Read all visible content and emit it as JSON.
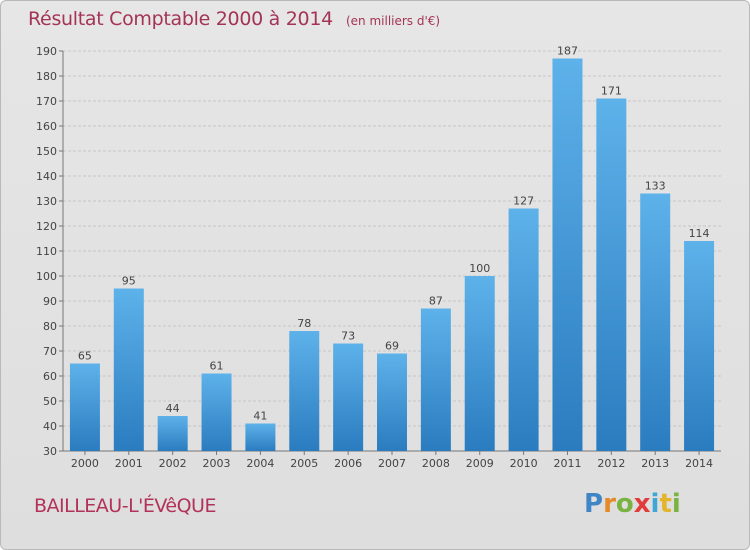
{
  "title": "Résultat Comptable 2000 à 2014",
  "subtitle": "(en milliers d'€)",
  "commune": "BAILLEAU-L'ÉVêQUE",
  "brand": "Proxiti",
  "colors": {
    "bar_light": "#5eb2ea",
    "bar_dark": "#2a7cbf",
    "title": "#a43456"
  },
  "chart_data": {
    "type": "bar",
    "categories": [
      "2000",
      "2001",
      "2002",
      "2003",
      "2004",
      "2005",
      "2006",
      "2007",
      "2008",
      "2009",
      "2010",
      "2011",
      "2012",
      "2013",
      "2014"
    ],
    "values": [
      65,
      95,
      44,
      61,
      41,
      78,
      73,
      69,
      87,
      100,
      127,
      187,
      171,
      133,
      114
    ],
    "ylim": [
      30,
      190
    ],
    "yticks": [
      30,
      40,
      50,
      60,
      70,
      80,
      90,
      100,
      110,
      120,
      130,
      140,
      150,
      160,
      170,
      180,
      190
    ],
    "grid": true,
    "xlabel": "",
    "ylabel": ""
  }
}
